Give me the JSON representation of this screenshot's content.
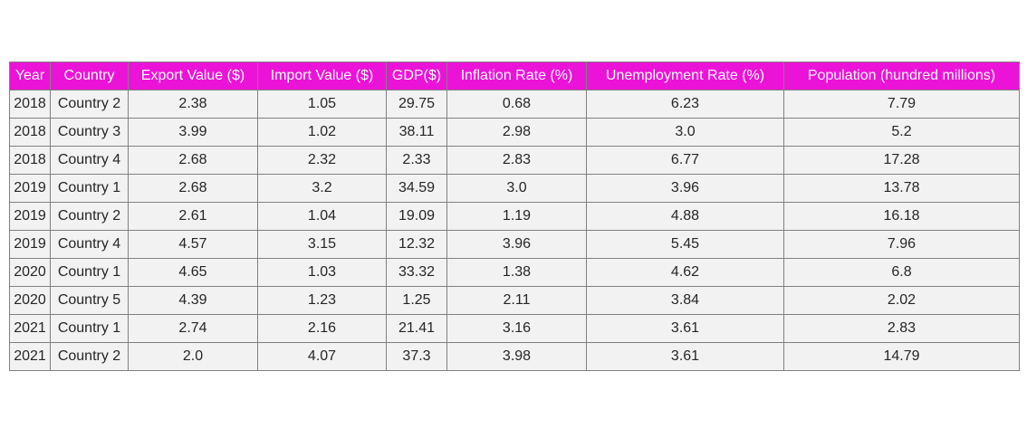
{
  "chart_data": {
    "type": "table",
    "header_color": "#ec13d8",
    "cell_color": "#f2f2f2",
    "columns": [
      "Year",
      "Country",
      "Export Value ($)",
      "Import Value ($)",
      "GDP($)",
      "Inflation Rate (%)",
      "Unemployment Rate (%)",
      "Population (hundred millions)"
    ],
    "rows": [
      [
        "2018",
        "Country 2",
        "2.38",
        "1.05",
        "29.75",
        "0.68",
        "6.23",
        "7.79"
      ],
      [
        "2018",
        "Country 3",
        "3.99",
        "1.02",
        "38.11",
        "2.98",
        "3.0",
        "5.2"
      ],
      [
        "2018",
        "Country 4",
        "2.68",
        "2.32",
        "2.33",
        "2.83",
        "6.77",
        "17.28"
      ],
      [
        "2019",
        "Country 1",
        "2.68",
        "3.2",
        "34.59",
        "3.0",
        "3.96",
        "13.78"
      ],
      [
        "2019",
        "Country 2",
        "2.61",
        "1.04",
        "19.09",
        "1.19",
        "4.88",
        "16.18"
      ],
      [
        "2019",
        "Country 4",
        "4.57",
        "3.15",
        "12.32",
        "3.96",
        "5.45",
        "7.96"
      ],
      [
        "2020",
        "Country 1",
        "4.65",
        "1.03",
        "33.32",
        "1.38",
        "4.62",
        "6.8"
      ],
      [
        "2020",
        "Country 5",
        "4.39",
        "1.23",
        "1.25",
        "2.11",
        "3.84",
        "2.02"
      ],
      [
        "2021",
        "Country 1",
        "2.74",
        "2.16",
        "21.41",
        "3.16",
        "3.61",
        "2.83"
      ],
      [
        "2021",
        "Country 2",
        "2.0",
        "4.07",
        "37.3",
        "3.98",
        "3.61",
        "14.79"
      ]
    ]
  }
}
